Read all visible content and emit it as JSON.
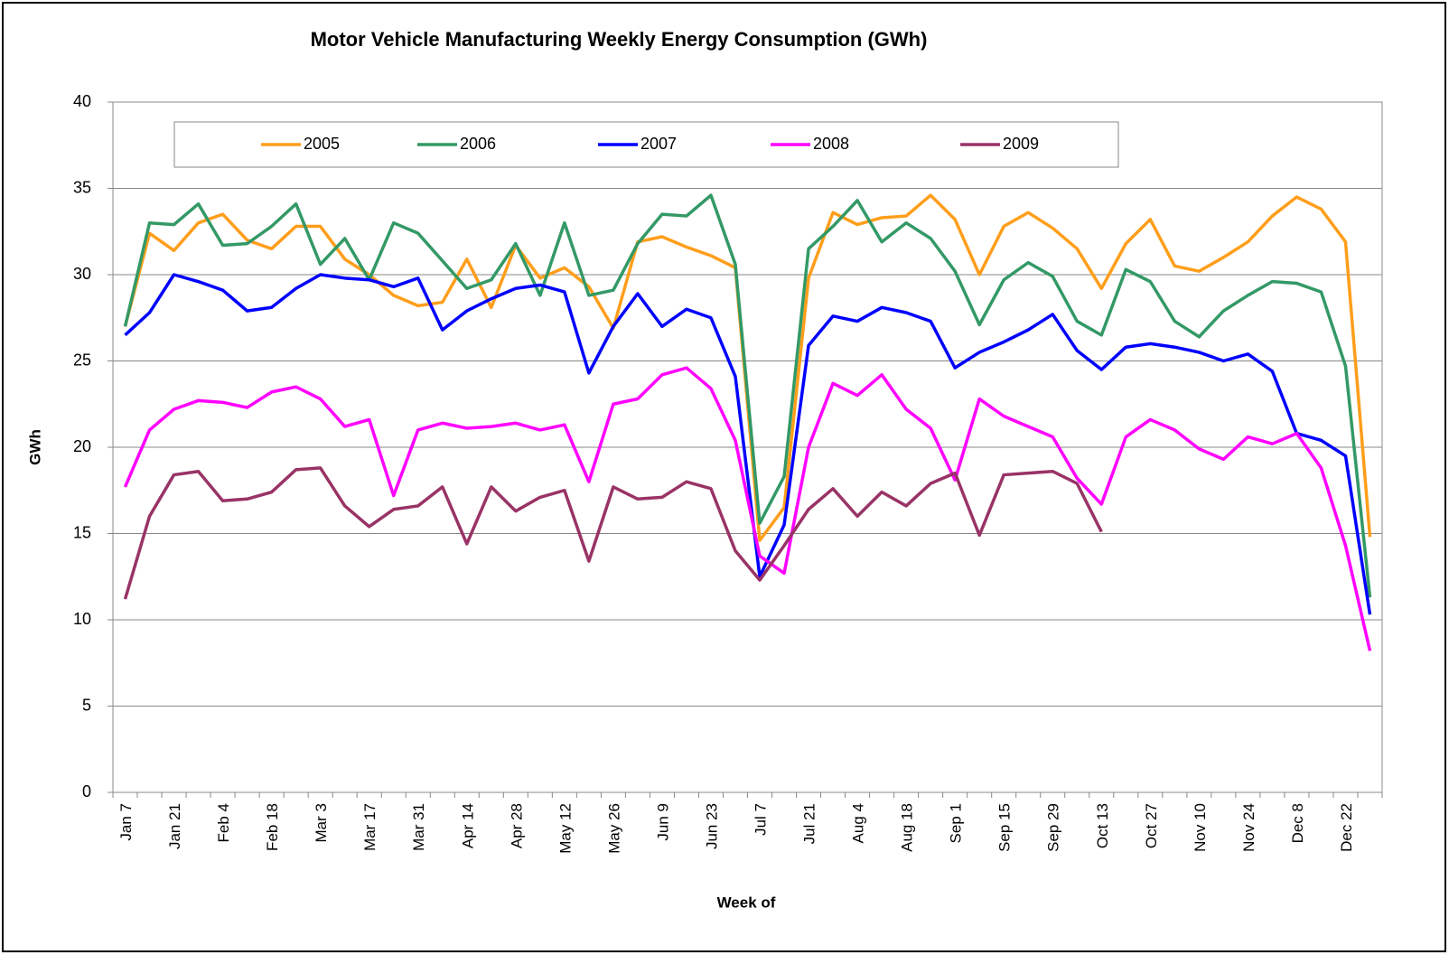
{
  "chart_data": {
    "type": "line",
    "title": "Motor Vehicle Manufacturing Weekly Energy Consumption (GWh)",
    "x_label": "Week of",
    "y_label": "GWh",
    "categories": [
      "Jan 7",
      null,
      "Jan 21",
      null,
      "Feb 4",
      null,
      "Feb 18",
      null,
      "Mar 3",
      null,
      "Mar 17",
      null,
      "Mar 31",
      null,
      "Apr 14",
      null,
      "Apr 28",
      null,
      "May 12",
      null,
      "May 26",
      null,
      "Jun 9",
      null,
      "Jun 23",
      null,
      "Jul 7",
      null,
      "Jul 21",
      null,
      "Aug 4",
      null,
      "Aug 18",
      null,
      "Sep 1",
      null,
      "Sep 15",
      null,
      "Sep 29",
      null,
      "Oct 13",
      null,
      "Oct 27",
      null,
      "Nov 10",
      null,
      "Nov 24",
      null,
      "Dec 8",
      null,
      "Dec 22",
      null
    ],
    "ylim": [
      0,
      40
    ],
    "yticks": [
      0,
      5,
      10,
      15,
      20,
      25,
      30,
      35,
      40
    ],
    "grid": true,
    "legend": "top",
    "series": [
      {
        "name": "2005",
        "color": "#ff9e1b",
        "values": [
          27.0,
          32.4,
          31.4,
          33.0,
          33.5,
          32.0,
          31.5,
          32.8,
          32.8,
          30.9,
          30.0,
          28.8,
          28.2,
          28.4,
          30.9,
          28.1,
          31.7,
          29.8,
          30.4,
          29.3,
          26.9,
          31.9,
          32.2,
          31.6,
          31.1,
          30.4,
          14.6,
          16.5,
          29.8,
          33.6,
          32.9,
          33.3,
          33.4,
          34.6,
          33.2,
          30.0,
          32.8,
          33.6,
          32.7,
          31.5,
          29.2,
          31.8,
          33.2,
          30.5,
          30.2,
          31.0,
          31.9,
          33.4,
          34.5,
          33.8,
          31.9,
          14.8
        ]
      },
      {
        "name": "2006",
        "color": "#339966",
        "values": [
          27.0,
          33.0,
          32.9,
          34.1,
          31.7,
          31.8,
          32.8,
          34.1,
          30.6,
          32.1,
          29.7,
          33.0,
          32.4,
          30.8,
          29.2,
          29.7,
          31.8,
          28.8,
          33.0,
          28.8,
          29.1,
          31.8,
          33.5,
          33.4,
          34.6,
          30.6,
          15.6,
          18.3,
          31.5,
          32.8,
          34.3,
          31.9,
          33.0,
          32.1,
          30.2,
          27.1,
          29.7,
          30.7,
          29.9,
          27.3,
          26.5,
          30.3,
          29.6,
          27.3,
          26.4,
          27.9,
          28.8,
          29.6,
          29.5,
          29.0,
          24.7,
          11.3
        ]
      },
      {
        "name": "2007",
        "color": "#0000ff",
        "values": [
          26.5,
          27.8,
          30.0,
          29.6,
          29.1,
          27.9,
          28.1,
          29.2,
          30.0,
          29.8,
          29.7,
          29.3,
          29.8,
          26.8,
          27.9,
          28.6,
          29.2,
          29.4,
          29.0,
          24.3,
          27.0,
          28.9,
          27.0,
          28.0,
          27.5,
          24.1,
          12.5,
          15.5,
          25.9,
          27.6,
          27.3,
          28.1,
          27.8,
          27.3,
          24.6,
          25.5,
          26.1,
          26.8,
          27.7,
          25.6,
          24.5,
          25.8,
          26.0,
          25.8,
          25.5,
          25.0,
          25.4,
          24.4,
          20.8,
          20.4,
          19.5,
          10.3
        ]
      },
      {
        "name": "2008",
        "color": "#ff00ff",
        "values": [
          17.7,
          21.0,
          22.2,
          22.7,
          22.6,
          22.3,
          23.2,
          23.5,
          22.8,
          21.2,
          21.6,
          17.2,
          21.0,
          21.4,
          21.1,
          21.2,
          21.4,
          21.0,
          21.3,
          18.0,
          22.5,
          22.8,
          24.2,
          24.6,
          23.4,
          20.4,
          13.7,
          12.7,
          20.0,
          23.7,
          23.0,
          24.2,
          22.2,
          21.1,
          18.1,
          22.8,
          21.8,
          21.2,
          20.6,
          18.2,
          16.7,
          20.6,
          21.6,
          21.0,
          19.9,
          19.3,
          20.6,
          20.2,
          20.8,
          18.8,
          14.3,
          8.2
        ]
      },
      {
        "name": "2009",
        "color": "#993366",
        "values": [
          11.2,
          16.0,
          18.4,
          18.6,
          16.9,
          17.0,
          17.4,
          18.7,
          18.8,
          16.6,
          15.4,
          16.4,
          16.6,
          17.7,
          14.4,
          17.7,
          16.3,
          17.1,
          17.5,
          13.4,
          17.7,
          17.0,
          17.1,
          18.0,
          17.6,
          14.0,
          12.3,
          14.3,
          16.4,
          17.6,
          16.0,
          17.4,
          16.6,
          17.9,
          18.5,
          14.9,
          18.4,
          18.5,
          18.6,
          17.9,
          15.1,
          null,
          null,
          null,
          null,
          null,
          null,
          null,
          null,
          null,
          null,
          null
        ]
      }
    ]
  }
}
